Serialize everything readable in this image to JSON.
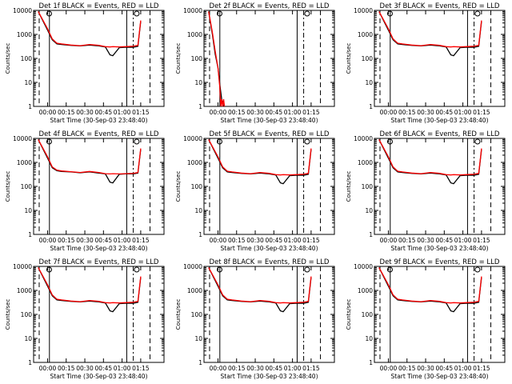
{
  "chart_data": [
    {
      "type": "line",
      "title": "Det 1f BLACK = Events, RED = LLD",
      "xlabel": "Start Time (30-Sep-03 23:48:40)",
      "ylabel": "Counts/sec",
      "ylim": [
        1,
        10000
      ],
      "y_scale": "log",
      "x_ticks": [
        "00:00",
        "00:15",
        "00:30",
        "00:45",
        "01:00",
        "01:15"
      ],
      "y_ticks": [
        "1",
        "10",
        "100",
        "1000",
        "10000"
      ],
      "marker": "flare",
      "series": [
        {
          "color": "#000000",
          "x": [
            -0.1,
            0,
            0.05,
            0.1,
            0.15,
            0.25,
            0.35,
            0.45,
            0.55,
            0.62,
            0.67,
            0.7,
            0.77,
            0.83,
            0.92,
            0.97,
            1.0
          ],
          "values": [
            9000,
            1500,
            600,
            400,
            380,
            350,
            330,
            360,
            330,
            300,
            140,
            130,
            280,
            290,
            290,
            320,
            3500
          ]
        },
        {
          "color": "#ff0000",
          "x": [
            -0.1,
            0,
            0.05,
            0.1,
            0.15,
            0.25,
            0.35,
            0.45,
            0.55,
            0.62,
            0.67,
            0.7,
            0.77,
            0.83,
            0.92,
            0.97,
            1.0
          ],
          "values": [
            9000,
            1700,
            650,
            430,
            400,
            360,
            340,
            380,
            350,
            310,
            300,
            310,
            300,
            310,
            320,
            350,
            3800
          ]
        }
      ]
    },
    {
      "type": "line",
      "title": "Det 2f BLACK = Events, RED = LLD",
      "xlabel": "Start Time (30-Sep-03 23:48:40)",
      "ylabel": "Counts/sec",
      "ylim": [
        1,
        10000
      ],
      "y_scale": "log",
      "x_ticks": [
        "00:00",
        "00:15",
        "00:30",
        "00:45",
        "01:00",
        "01:15"
      ],
      "y_ticks": [
        "1",
        "10",
        "100",
        "1000",
        "10000"
      ],
      "marker": "flare",
      "series": [
        {
          "color": "#000000",
          "x": [
            -0.1,
            -0.06,
            -0.03,
            0,
            0.02,
            0.04,
            0.06
          ],
          "values": [
            9000,
            1000,
            150,
            40,
            8,
            2,
            1
          ]
        },
        {
          "color": "#ff0000",
          "x": [
            -0.1,
            -0.06,
            -0.03,
            0,
            0.02,
            0.03,
            0.04,
            0.05,
            0.06,
            0.07
          ],
          "values": [
            9000,
            1200,
            200,
            40,
            6,
            1,
            2,
            1,
            2,
            1
          ]
        }
      ]
    },
    {
      "type": "line",
      "title": "Det 3f BLACK = Events, RED = LLD",
      "xlabel": "Start Time (30-Sep-03 23:48:40)",
      "ylabel": "Counts/sec",
      "ylim": [
        1,
        10000
      ],
      "y_scale": "log",
      "x_ticks": [
        "00:00",
        "00:15",
        "00:30",
        "00:45",
        "01:00",
        "01:15"
      ],
      "y_ticks": [
        "1",
        "10",
        "100",
        "1000",
        "10000"
      ],
      "marker": "flare",
      "series": [
        {
          "color": "#000000",
          "x": [
            -0.1,
            0,
            0.05,
            0.1,
            0.15,
            0.25,
            0.35,
            0.45,
            0.55,
            0.62,
            0.67,
            0.7,
            0.77,
            0.83,
            0.92,
            0.97,
            1.0
          ],
          "values": [
            9000,
            1500,
            600,
            400,
            380,
            350,
            330,
            360,
            330,
            300,
            140,
            130,
            280,
            290,
            290,
            320,
            3500
          ]
        },
        {
          "color": "#ff0000",
          "x": [
            -0.1,
            0,
            0.05,
            0.1,
            0.15,
            0.25,
            0.35,
            0.45,
            0.55,
            0.62,
            0.67,
            0.7,
            0.77,
            0.83,
            0.92,
            0.97,
            1.0
          ],
          "values": [
            9000,
            1700,
            650,
            430,
            400,
            360,
            340,
            380,
            350,
            310,
            300,
            310,
            300,
            310,
            320,
            350,
            3800
          ]
        }
      ]
    },
    {
      "type": "line",
      "title": "Det 4f BLACK = Events, RED = LLD",
      "xlabel": "Start Time (30-Sep-03 23:48:40)",
      "ylabel": "Counts/sec",
      "ylim": [
        1,
        10000
      ],
      "y_scale": "log",
      "x_ticks": [
        "00:00",
        "00:15",
        "00:30",
        "00:45",
        "01:00",
        "01:15"
      ],
      "y_ticks": [
        "1",
        "10",
        "100",
        "1000",
        "10000"
      ],
      "marker": "flare",
      "series": [
        {
          "color": "#000000",
          "x": [
            -0.1,
            0,
            0.05,
            0.1,
            0.15,
            0.25,
            0.35,
            0.45,
            0.55,
            0.62,
            0.67,
            0.7,
            0.77,
            0.83,
            0.92,
            0.97,
            1.0
          ],
          "values": [
            9000,
            1500,
            600,
            450,
            420,
            400,
            370,
            400,
            360,
            330,
            150,
            140,
            320,
            330,
            330,
            360,
            3500
          ]
        },
        {
          "color": "#ff0000",
          "x": [
            -0.1,
            0,
            0.05,
            0.1,
            0.15,
            0.25,
            0.35,
            0.45,
            0.55,
            0.62,
            0.67,
            0.7,
            0.77,
            0.83,
            0.92,
            0.97,
            1.0
          ],
          "values": [
            9000,
            1700,
            650,
            480,
            440,
            410,
            380,
            420,
            380,
            340,
            330,
            340,
            330,
            340,
            350,
            380,
            3800
          ]
        }
      ]
    },
    {
      "type": "line",
      "title": "Det 5f BLACK = Events, RED = LLD",
      "xlabel": "Start Time (30-Sep-03 23:48:40)",
      "ylabel": "Counts/sec",
      "ylim": [
        1,
        10000
      ],
      "y_scale": "log",
      "x_ticks": [
        "00:00",
        "00:15",
        "00:30",
        "00:45",
        "01:00",
        "01:15"
      ],
      "y_ticks": [
        "1",
        "10",
        "100",
        "1000",
        "10000"
      ],
      "marker": "flare",
      "series": [
        {
          "color": "#000000",
          "x": [
            -0.1,
            0,
            0.05,
            0.1,
            0.15,
            0.25,
            0.35,
            0.45,
            0.55,
            0.62,
            0.67,
            0.7,
            0.77,
            0.83,
            0.92,
            0.97,
            1.0
          ],
          "values": [
            9000,
            1500,
            600,
            400,
            380,
            350,
            330,
            360,
            330,
            300,
            140,
            130,
            280,
            290,
            290,
            320,
            3500
          ]
        },
        {
          "color": "#ff0000",
          "x": [
            -0.1,
            0,
            0.05,
            0.1,
            0.15,
            0.25,
            0.35,
            0.45,
            0.55,
            0.62,
            0.67,
            0.7,
            0.77,
            0.83,
            0.92,
            0.97,
            1.0
          ],
          "values": [
            9000,
            1700,
            650,
            430,
            400,
            360,
            340,
            380,
            350,
            310,
            300,
            310,
            300,
            310,
            320,
            350,
            3800
          ]
        }
      ]
    },
    {
      "type": "line",
      "title": "Det 6f BLACK = Events, RED = LLD",
      "xlabel": "Start Time (30-Sep-03 23:48:40)",
      "ylabel": "Counts/sec",
      "ylim": [
        1,
        10000
      ],
      "y_scale": "log",
      "x_ticks": [
        "00:00",
        "00:15",
        "00:30",
        "00:45",
        "01:00",
        "01:15"
      ],
      "y_ticks": [
        "1",
        "10",
        "100",
        "1000",
        "10000"
      ],
      "marker": "flare",
      "series": [
        {
          "color": "#000000",
          "x": [
            -0.1,
            0,
            0.05,
            0.1,
            0.15,
            0.25,
            0.35,
            0.45,
            0.55,
            0.62,
            0.67,
            0.7,
            0.77,
            0.83,
            0.92,
            0.97,
            1.0
          ],
          "values": [
            9000,
            1500,
            600,
            400,
            380,
            350,
            330,
            360,
            330,
            300,
            140,
            130,
            280,
            290,
            290,
            320,
            3500
          ]
        },
        {
          "color": "#ff0000",
          "x": [
            -0.1,
            0,
            0.05,
            0.1,
            0.15,
            0.25,
            0.35,
            0.45,
            0.55,
            0.62,
            0.67,
            0.7,
            0.77,
            0.83,
            0.92,
            0.97,
            1.0
          ],
          "values": [
            9000,
            1700,
            650,
            430,
            400,
            360,
            340,
            380,
            350,
            310,
            300,
            310,
            300,
            310,
            320,
            350,
            3800
          ]
        }
      ]
    },
    {
      "type": "line",
      "title": "Det 7f BLACK = Events, RED = LLD",
      "xlabel": "Start Time (30-Sep-03 23:48:40)",
      "ylabel": "Counts/sec",
      "ylim": [
        1,
        10000
      ],
      "y_scale": "log",
      "x_ticks": [
        "00:00",
        "00:15",
        "00:30",
        "00:45",
        "01:00",
        "01:15"
      ],
      "y_ticks": [
        "1",
        "10",
        "100",
        "1000",
        "10000"
      ],
      "marker": "flare",
      "series": [
        {
          "color": "#000000",
          "x": [
            -0.1,
            0,
            0.05,
            0.1,
            0.15,
            0.25,
            0.35,
            0.45,
            0.55,
            0.62,
            0.67,
            0.7,
            0.77,
            0.83,
            0.92,
            0.97,
            1.0
          ],
          "values": [
            9000,
            1500,
            600,
            400,
            380,
            350,
            330,
            360,
            330,
            300,
            140,
            130,
            280,
            290,
            290,
            320,
            3500
          ]
        },
        {
          "color": "#ff0000",
          "x": [
            -0.1,
            0,
            0.05,
            0.1,
            0.15,
            0.25,
            0.35,
            0.45,
            0.55,
            0.62,
            0.67,
            0.7,
            0.77,
            0.83,
            0.92,
            0.97,
            1.0
          ],
          "values": [
            9000,
            1700,
            650,
            430,
            400,
            360,
            340,
            380,
            350,
            310,
            300,
            310,
            300,
            310,
            320,
            350,
            3800
          ]
        }
      ]
    },
    {
      "type": "line",
      "title": "Det 8f BLACK = Events, RED = LLD",
      "xlabel": "Start Time (30-Sep-03 23:48:40)",
      "ylabel": "Counts/sec",
      "ylim": [
        1,
        10000
      ],
      "y_scale": "log",
      "x_ticks": [
        "00:00",
        "00:15",
        "00:30",
        "00:45",
        "01:00",
        "01:15"
      ],
      "y_ticks": [
        "1",
        "10",
        "100",
        "1000",
        "10000"
      ],
      "marker": "flare",
      "series": [
        {
          "color": "#000000",
          "x": [
            -0.1,
            0,
            0.05,
            0.1,
            0.15,
            0.25,
            0.35,
            0.45,
            0.55,
            0.62,
            0.67,
            0.7,
            0.77,
            0.83,
            0.92,
            0.97,
            1.0
          ],
          "values": [
            9000,
            1500,
            600,
            400,
            380,
            350,
            330,
            360,
            330,
            300,
            140,
            130,
            280,
            290,
            290,
            320,
            3500
          ]
        },
        {
          "color": "#ff0000",
          "x": [
            -0.1,
            0,
            0.05,
            0.1,
            0.15,
            0.25,
            0.35,
            0.45,
            0.55,
            0.62,
            0.67,
            0.7,
            0.77,
            0.83,
            0.92,
            0.97,
            1.0
          ],
          "values": [
            9000,
            1700,
            650,
            430,
            400,
            360,
            340,
            380,
            350,
            310,
            300,
            310,
            300,
            310,
            320,
            350,
            3800
          ]
        }
      ]
    },
    {
      "type": "line",
      "title": "Det 9f BLACK = Events, RED = LLD",
      "xlabel": "Start Time (30-Sep-03 23:48:40)",
      "ylabel": "Counts/sec",
      "ylim": [
        1,
        10000
      ],
      "y_scale": "log",
      "x_ticks": [
        "00:00",
        "00:15",
        "00:30",
        "00:45",
        "01:00",
        "01:15"
      ],
      "y_ticks": [
        "1",
        "10",
        "100",
        "1000",
        "10000"
      ],
      "marker": "flare",
      "series": [
        {
          "color": "#000000",
          "x": [
            -0.1,
            0,
            0.05,
            0.1,
            0.15,
            0.25,
            0.35,
            0.45,
            0.55,
            0.62,
            0.67,
            0.7,
            0.77,
            0.83,
            0.92,
            0.97,
            1.0
          ],
          "values": [
            9000,
            1500,
            600,
            400,
            380,
            350,
            330,
            360,
            330,
            300,
            140,
            130,
            280,
            290,
            290,
            320,
            3500
          ]
        },
        {
          "color": "#ff0000",
          "x": [
            -0.1,
            0,
            0.05,
            0.1,
            0.15,
            0.25,
            0.35,
            0.45,
            0.55,
            0.62,
            0.67,
            0.7,
            0.77,
            0.83,
            0.92,
            0.97,
            1.0
          ],
          "values": [
            9000,
            1700,
            650,
            430,
            400,
            360,
            340,
            380,
            350,
            310,
            300,
            310,
            300,
            310,
            320,
            350,
            3800
          ]
        }
      ]
    }
  ]
}
